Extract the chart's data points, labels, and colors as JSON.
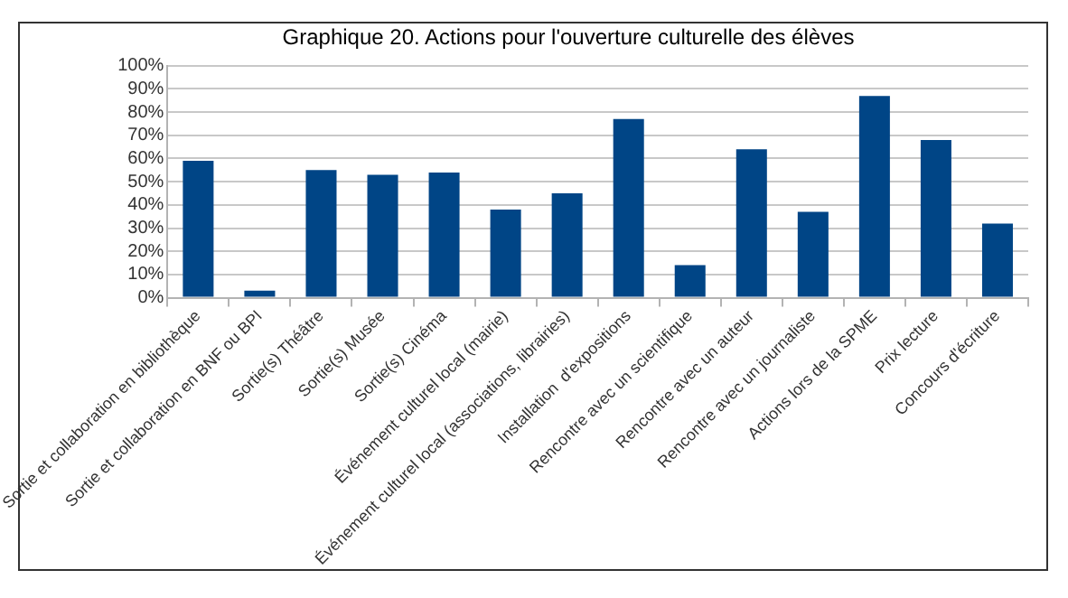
{
  "chart_data": {
    "type": "bar",
    "title": "Graphique 20. Actions pour l'ouverture culturelle des élèves",
    "categories": [
      "Sortie et collaboration en bibliothèque",
      "Sortie et collaboration en BNF ou BPI",
      "Sortie(s) Théâtre",
      "Sortie(s) Musée",
      "Sortie(s) Cinéma",
      "Événement culturel local (mairie)",
      "Événement culturel local (associations, librairies)",
      "Installation  d'expositions",
      "Rencontre avec un scientifique",
      "Rencontre avec un auteur",
      "Rencontre avec un journaliste",
      "Actions lors de la SPME",
      "Prix lecture",
      "Concours d'écriture"
    ],
    "values": [
      59,
      3,
      55,
      53,
      54,
      38,
      45,
      77,
      14,
      64,
      37,
      87,
      68,
      32
    ],
    "color": "#004586",
    "ylim": [
      0,
      100
    ],
    "yticks": [
      {
        "value": 0,
        "label": "0%"
      },
      {
        "value": 10,
        "label": "10%"
      },
      {
        "value": 20,
        "label": "20%"
      },
      {
        "value": 30,
        "label": "30%"
      },
      {
        "value": 40,
        "label": "40%"
      },
      {
        "value": 50,
        "label": "50%"
      },
      {
        "value": 60,
        "label": "60%"
      },
      {
        "value": 70,
        "label": "70%"
      },
      {
        "value": 80,
        "label": "80%"
      },
      {
        "value": 90,
        "label": "90%"
      },
      {
        "value": 100,
        "label": "100%"
      }
    ],
    "grid": "y"
  }
}
